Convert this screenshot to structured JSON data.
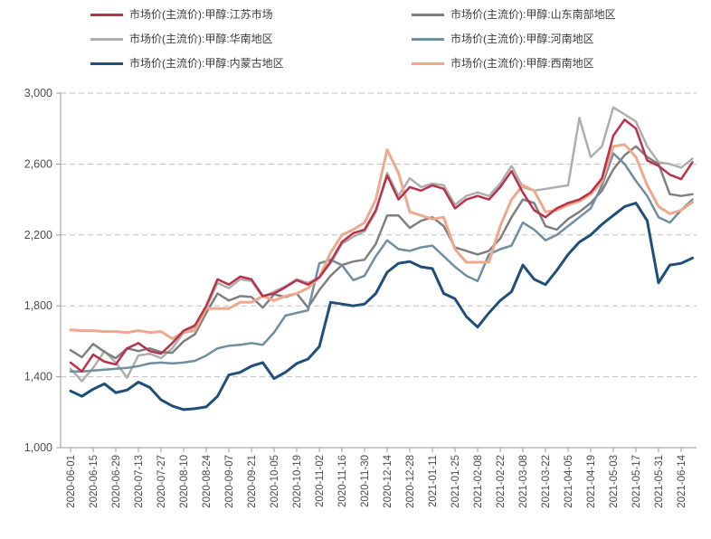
{
  "legend": {
    "items": [
      {
        "id": "jiangsu",
        "label": "市场价(主流价):甲醇:江苏市场",
        "color": "#b83249"
      },
      {
        "id": "shandong-south",
        "label": "市场价(主流价):甲醇:山东南部地区",
        "color": "#7f7f7f"
      },
      {
        "id": "huanan",
        "label": "市场价(主流价):甲醇:华南地区",
        "color": "#aeaeae"
      },
      {
        "id": "henan",
        "label": "市场价(主流价):甲醇:河南地区",
        "color": "#6f8ea0"
      },
      {
        "id": "neimenggu",
        "label": "市场价(主流价):甲醇:内蒙古地区",
        "color": "#1f4e79"
      },
      {
        "id": "xinan",
        "label": "市场价(主流价):甲醇:西南地区",
        "color": "#eda88d"
      }
    ]
  },
  "chart_data": {
    "type": "line",
    "title": "",
    "xlabel": "",
    "ylabel": "",
    "legend_position": "top",
    "grid": "horizontal-dashed",
    "ylim": [
      1000,
      3000
    ],
    "y_ticks": [
      {
        "value": 1000,
        "label": "1,000"
      },
      {
        "value": 1400,
        "label": "1,400"
      },
      {
        "value": 1800,
        "label": "1,800"
      },
      {
        "value": 2200,
        "label": "2,200"
      },
      {
        "value": 2600,
        "label": "2,600"
      },
      {
        "value": 3000,
        "label": "3,000"
      }
    ],
    "x_tick_labels": [
      "2020-06-01",
      "2020-06-15",
      "2020-06-29",
      "2020-07-13",
      "2020-07-27",
      "2020-08-10",
      "2020-08-24",
      "2020-09-07",
      "2020-09-21",
      "2020-10-05",
      "2020-10-19",
      "2020-11-02",
      "2020-11-16",
      "2020-11-30",
      "2020-12-14",
      "2020-12-28",
      "2021-01-11",
      "2021-01-25",
      "2021-02-08",
      "2021-02-22",
      "2021-03-08",
      "2021-03-22",
      "2021-04-05",
      "2021-04-19",
      "2021-05-03",
      "2021-05-17",
      "2021-05-31",
      "2021-06-14"
    ],
    "x": [
      "2020-06-01",
      "2020-06-08",
      "2020-06-15",
      "2020-06-22",
      "2020-06-29",
      "2020-07-06",
      "2020-07-13",
      "2020-07-20",
      "2020-07-27",
      "2020-08-03",
      "2020-08-10",
      "2020-08-17",
      "2020-08-24",
      "2020-08-31",
      "2020-09-07",
      "2020-09-14",
      "2020-09-21",
      "2020-09-28",
      "2020-10-05",
      "2020-10-12",
      "2020-10-19",
      "2020-10-26",
      "2020-11-02",
      "2020-11-09",
      "2020-11-16",
      "2020-11-23",
      "2020-11-30",
      "2020-12-07",
      "2020-12-14",
      "2020-12-21",
      "2020-12-28",
      "2021-01-04",
      "2021-01-11",
      "2021-01-18",
      "2021-01-25",
      "2021-02-01",
      "2021-02-08",
      "2021-02-15",
      "2021-02-22",
      "2021-03-01",
      "2021-03-08",
      "2021-03-15",
      "2021-03-22",
      "2021-03-29",
      "2021-04-05",
      "2021-04-12",
      "2021-04-19",
      "2021-04-26",
      "2021-05-03",
      "2021-05-10",
      "2021-05-17",
      "2021-05-24",
      "2021-05-31",
      "2021-06-07",
      "2021-06-14",
      "2021-06-21"
    ],
    "draw_order": [
      2,
      1,
      3,
      5,
      0,
      4
    ],
    "series": [
      {
        "id": "jiangsu",
        "name": "市场价(主流价):甲醇:江苏市场",
        "color": "#b83249",
        "width": 2.5,
        "values": [
          1480,
          1430,
          1525,
          1485,
          1470,
          1560,
          1590,
          1545,
          1530,
          1590,
          1660,
          1690,
          1800,
          1950,
          1920,
          1965,
          1950,
          1855,
          1870,
          1905,
          1945,
          1920,
          1960,
          2050,
          2160,
          2210,
          2230,
          2340,
          2535,
          2400,
          2470,
          2450,
          2480,
          2460,
          2350,
          2400,
          2420,
          2400,
          2470,
          2560,
          2440,
          2340,
          2300,
          2350,
          2380,
          2400,
          2440,
          2520,
          2760,
          2850,
          2800,
          2620,
          2590,
          2540,
          2515,
          2610
        ]
      },
      {
        "id": "shandong-south",
        "name": "市场价(主流价):甲醇:山东南部地区",
        "color": "#7f7f7f",
        "width": 2.5,
        "values": [
          1550,
          1510,
          1585,
          1540,
          1505,
          1560,
          1545,
          1560,
          1540,
          1535,
          1600,
          1640,
          1760,
          1870,
          1830,
          1855,
          1850,
          1790,
          1865,
          1850,
          1870,
          1790,
          1890,
          1970,
          2030,
          2050,
          2060,
          2150,
          2310,
          2310,
          2240,
          2280,
          2300,
          2250,
          2130,
          2110,
          2090,
          2110,
          2180,
          2300,
          2400,
          2380,
          2250,
          2230,
          2290,
          2330,
          2380,
          2450,
          2570,
          2650,
          2700,
          2640,
          2600,
          2430,
          2420,
          2430
        ]
      },
      {
        "id": "huanan",
        "name": "市场价(主流价):甲醇:华南地区",
        "color": "#aeaeae",
        "width": 2.5,
        "values": [
          1445,
          1375,
          1450,
          1545,
          1480,
          1395,
          1520,
          1530,
          1505,
          1560,
          1650,
          1680,
          1790,
          1930,
          1900,
          1950,
          1940,
          1850,
          1880,
          1910,
          1950,
          1930,
          1960,
          2040,
          2150,
          2190,
          2220,
          2330,
          2550,
          2420,
          2520,
          2470,
          2490,
          2480,
          2370,
          2420,
          2440,
          2420,
          2490,
          2590,
          2470,
          2450,
          2460,
          2470,
          2480,
          2860,
          2640,
          2700,
          2920,
          2880,
          2840,
          2700,
          2610,
          2600,
          2580,
          2630
        ]
      },
      {
        "id": "henan",
        "name": "市场价(主流价):甲醇:河南地区",
        "color": "#6f8ea0",
        "width": 2.5,
        "values": [
          1430,
          1430,
          1435,
          1440,
          1445,
          1450,
          1460,
          1475,
          1480,
          1475,
          1480,
          1490,
          1520,
          1560,
          1575,
          1580,
          1590,
          1580,
          1650,
          1745,
          1760,
          1775,
          2040,
          2060,
          2030,
          1945,
          1970,
          2080,
          2170,
          2120,
          2110,
          2130,
          2140,
          2080,
          2020,
          1970,
          1940,
          2090,
          2120,
          2140,
          2270,
          2230,
          2170,
          2200,
          2250,
          2300,
          2350,
          2480,
          2660,
          2600,
          2505,
          2420,
          2300,
          2270,
          2340,
          2400
        ]
      },
      {
        "id": "neimenggu",
        "name": "市场价(主流价):甲醇:内蒙古地区",
        "color": "#1f4e79",
        "width": 3,
        "values": [
          1320,
          1290,
          1330,
          1360,
          1310,
          1325,
          1370,
          1340,
          1270,
          1235,
          1215,
          1220,
          1230,
          1290,
          1410,
          1425,
          1460,
          1480,
          1390,
          1425,
          1475,
          1500,
          1570,
          1820,
          1810,
          1800,
          1810,
          1870,
          1990,
          2040,
          2050,
          2020,
          2010,
          1870,
          1840,
          1740,
          1680,
          1760,
          1830,
          1880,
          2030,
          1950,
          1920,
          2000,
          2090,
          2160,
          2200,
          2260,
          2310,
          2360,
          2380,
          2280,
          1930,
          2030,
          2040,
          2070
        ]
      },
      {
        "id": "xinan",
        "name": "市场价(主流价):甲醇:西南地区",
        "color": "#eda88d",
        "width": 3,
        "values": [
          1665,
          1660,
          1660,
          1655,
          1655,
          1650,
          1660,
          1650,
          1655,
          1615,
          1650,
          1660,
          1785,
          1785,
          1785,
          1820,
          1820,
          1855,
          1830,
          1855,
          1870,
          1900,
          1960,
          2100,
          2200,
          2230,
          2270,
          2400,
          2680,
          2550,
          2330,
          2310,
          2290,
          2300,
          2120,
          2046,
          2046,
          2046,
          2250,
          2400,
          2480,
          2450,
          2330,
          2340,
          2370,
          2390,
          2430,
          2500,
          2700,
          2710,
          2640,
          2480,
          2360,
          2320,
          2340,
          2385
        ]
      }
    ]
  }
}
